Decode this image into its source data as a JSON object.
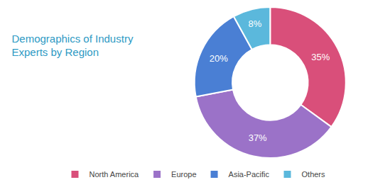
{
  "chart_data": {
    "type": "donut",
    "title": "Demographics of Industry\nExperts by Region",
    "categories": [
      "North America",
      "Europe",
      "Asia-Pacific",
      "Others"
    ],
    "values": [
      35,
      37,
      20,
      8
    ],
    "value_labels": [
      "35%",
      "37%",
      "20%",
      "8%"
    ],
    "colors": [
      "#D94F7A",
      "#9B72C8",
      "#4A7FD4",
      "#5BB8DC"
    ],
    "data_labels": true,
    "legend": "bottom"
  }
}
